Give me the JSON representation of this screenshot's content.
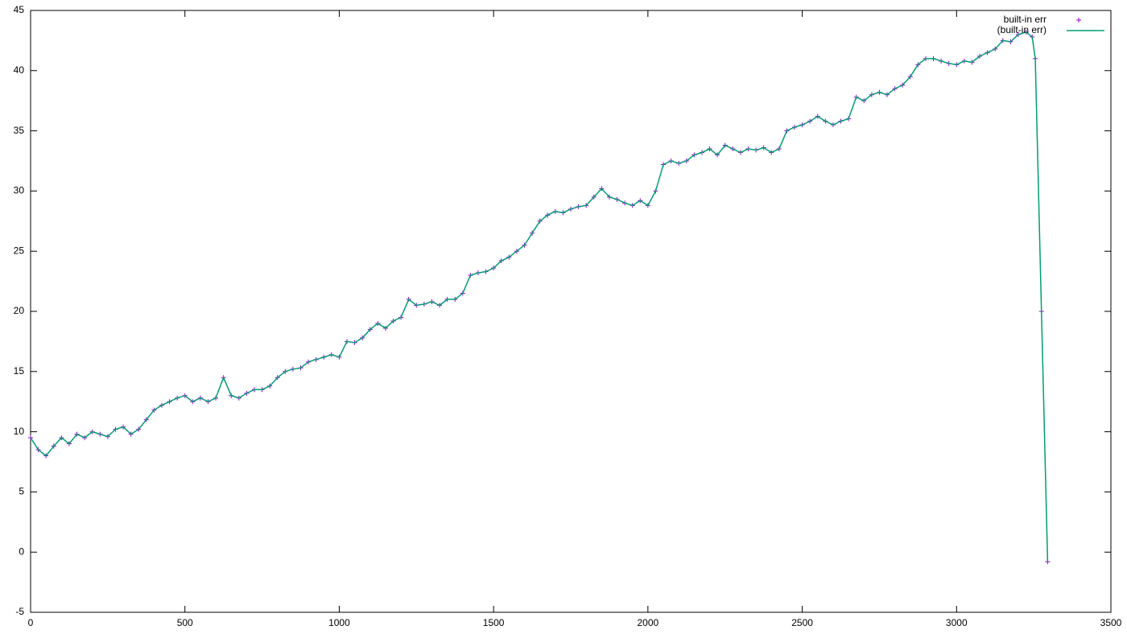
{
  "chart_data": {
    "type": "line",
    "x": [
      0,
      25,
      50,
      75,
      100,
      125,
      150,
      175,
      200,
      225,
      250,
      275,
      300,
      325,
      350,
      375,
      400,
      425,
      450,
      475,
      500,
      525,
      550,
      575,
      600,
      625,
      650,
      675,
      700,
      725,
      750,
      775,
      800,
      825,
      850,
      875,
      900,
      925,
      950,
      975,
      1000,
      1025,
      1050,
      1075,
      1100,
      1125,
      1150,
      1175,
      1200,
      1225,
      1250,
      1275,
      1300,
      1325,
      1350,
      1375,
      1400,
      1425,
      1450,
      1475,
      1500,
      1525,
      1550,
      1575,
      1600,
      1625,
      1650,
      1675,
      1700,
      1725,
      1750,
      1775,
      1800,
      1825,
      1850,
      1875,
      1900,
      1925,
      1950,
      1975,
      2000,
      2025,
      2050,
      2075,
      2100,
      2125,
      2150,
      2175,
      2200,
      2225,
      2250,
      2275,
      2300,
      2325,
      2350,
      2375,
      2400,
      2425,
      2450,
      2475,
      2500,
      2525,
      2550,
      2575,
      2600,
      2625,
      2650,
      2675,
      2700,
      2725,
      2750,
      2775,
      2800,
      2825,
      2850,
      2875,
      2900,
      2925,
      2950,
      2975,
      3000,
      3025,
      3050,
      3075,
      3100,
      3125,
      3150,
      3175,
      3200,
      3225,
      3245,
      3255,
      3275,
      3295
    ],
    "series": [
      {
        "name": "built-in err",
        "color": "#9400d3",
        "marker": "plus",
        "values": [
          9.5,
          8.5,
          8,
          8.8,
          9.5,
          9,
          9.8,
          9.5,
          10,
          9.8,
          9.6,
          10.2,
          10.4,
          9.8,
          10.2,
          11,
          11.8,
          12.2,
          12.5,
          12.8,
          13,
          12.5,
          12.8,
          12.5,
          12.8,
          14.5,
          13,
          12.8,
          13.2,
          13.5,
          13.5,
          13.8,
          14.5,
          15,
          15.2,
          15.3,
          15.8,
          16,
          16.2,
          16.4,
          16.2,
          17.5,
          17.4,
          17.8,
          18.5,
          19,
          18.6,
          19.2,
          19.5,
          21,
          20.5,
          20.6,
          20.8,
          20.5,
          21,
          21,
          21.5,
          23,
          23.2,
          23.3,
          23.6,
          24.2,
          24.5,
          25,
          25.5,
          26.5,
          27.5,
          28,
          28.3,
          28.2,
          28.5,
          28.7,
          28.8,
          29.5,
          30.2,
          29.5,
          29.3,
          29,
          28.8,
          29.2,
          28.8,
          30,
          32.2,
          32.5,
          32.3,
          32.5,
          33,
          33.2,
          33.5,
          33,
          33.8,
          33.5,
          33.2,
          33.5,
          33.4,
          33.6,
          33.2,
          33.5,
          35,
          35.3,
          35.5,
          35.8,
          36.2,
          35.8,
          35.5,
          35.8,
          36,
          37.8,
          37.5,
          38,
          38.2,
          38,
          38.5,
          38.8,
          39.5,
          40.5,
          41,
          41,
          40.8,
          40.6,
          40.5,
          40.8,
          40.7,
          41.2,
          41.5,
          41.8,
          42.5,
          42.4,
          43,
          43.2,
          42.8,
          41,
          20,
          -0.8
        ]
      },
      {
        "name": "(built-in err)",
        "color": "#009e73",
        "marker": "line",
        "values": [
          9.5,
          8.5,
          8,
          8.8,
          9.5,
          9,
          9.8,
          9.5,
          10,
          9.8,
          9.6,
          10.2,
          10.4,
          9.8,
          10.2,
          11,
          11.8,
          12.2,
          12.5,
          12.8,
          13,
          12.5,
          12.8,
          12.5,
          12.8,
          14.5,
          13,
          12.8,
          13.2,
          13.5,
          13.5,
          13.8,
          14.5,
          15,
          15.2,
          15.3,
          15.8,
          16,
          16.2,
          16.4,
          16.2,
          17.5,
          17.4,
          17.8,
          18.5,
          19,
          18.6,
          19.2,
          19.5,
          21,
          20.5,
          20.6,
          20.8,
          20.5,
          21,
          21,
          21.5,
          23,
          23.2,
          23.3,
          23.6,
          24.2,
          24.5,
          25,
          25.5,
          26.5,
          27.5,
          28,
          28.3,
          28.2,
          28.5,
          28.7,
          28.8,
          29.5,
          30.2,
          29.5,
          29.3,
          29,
          28.8,
          29.2,
          28.8,
          30,
          32.2,
          32.5,
          32.3,
          32.5,
          33,
          33.2,
          33.5,
          33,
          33.8,
          33.5,
          33.2,
          33.5,
          33.4,
          33.6,
          33.2,
          33.5,
          35,
          35.3,
          35.5,
          35.8,
          36.2,
          35.8,
          35.5,
          35.8,
          36,
          37.8,
          37.5,
          38,
          38.2,
          38,
          38.5,
          38.8,
          39.5,
          40.5,
          41,
          41,
          40.8,
          40.6,
          40.5,
          40.8,
          40.7,
          41.2,
          41.5,
          41.8,
          42.5,
          42.4,
          43,
          43.2,
          42.8,
          41,
          20,
          -0.8
        ]
      }
    ],
    "xlim": [
      0,
      3500
    ],
    "xticks": [
      0,
      500,
      1000,
      1500,
      2000,
      2500,
      3000,
      3500
    ],
    "ylim": [
      -5,
      45
    ],
    "yticks": [
      -5,
      0,
      5,
      10,
      15,
      20,
      25,
      30,
      35,
      40,
      45
    ],
    "grid": false,
    "legend": "top-right"
  }
}
